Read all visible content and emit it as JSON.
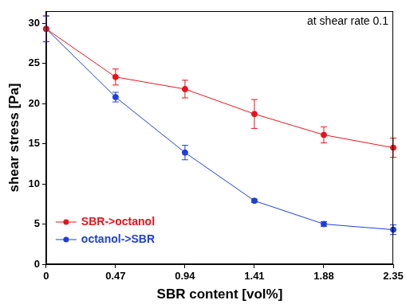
{
  "chart_data": {
    "type": "line",
    "annotation": "at shear rate 0.1",
    "x_label": "SBR content [vol%]",
    "y_label": "shear stress [Pa]",
    "x": [
      0,
      0.47,
      0.94,
      1.41,
      1.88,
      2.35
    ],
    "xlim": [
      0,
      2.35
    ],
    "xticks": [
      0,
      0.47,
      0.94,
      1.41,
      1.88,
      2.35
    ],
    "ylim": [
      0,
      31.5
    ],
    "yticks": [
      0,
      5,
      10,
      15,
      20,
      25,
      30
    ],
    "grid": false,
    "legend": "lower left",
    "marker": "circle",
    "line_style": "solid",
    "series": [
      {
        "name": "SBR->octanol",
        "color": "#e8141b",
        "values": [
          29.3,
          23.3,
          21.8,
          18.7,
          16.1,
          14.5
        ],
        "errors": [
          1.6,
          1.0,
          1.1,
          1.8,
          1.0,
          1.2
        ]
      },
      {
        "name": "octanol->SBR",
        "color": "#1f3fd6",
        "values": [
          29.3,
          20.8,
          13.9,
          7.9,
          5.0,
          4.3
        ],
        "errors": [
          1.6,
          0.6,
          0.9,
          0.2,
          0.3,
          0.6
        ]
      }
    ]
  }
}
